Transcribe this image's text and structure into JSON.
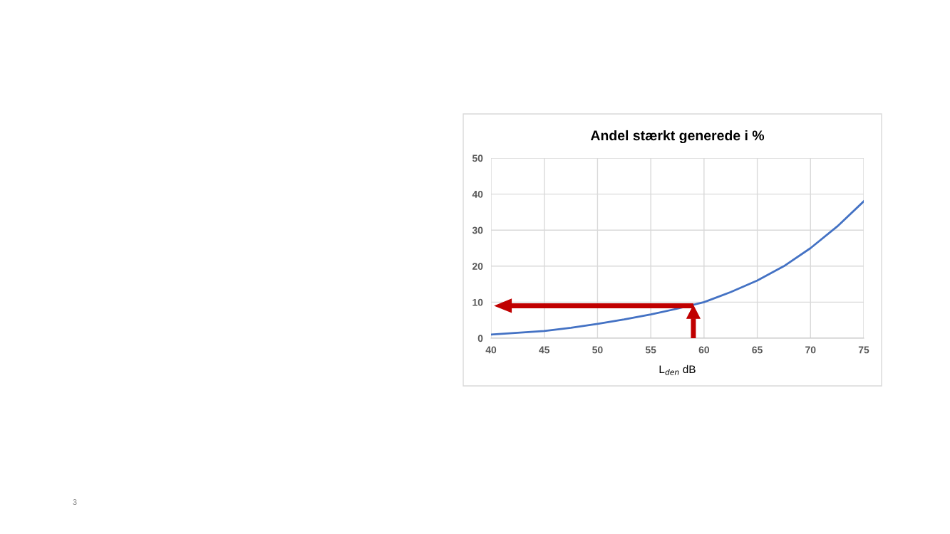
{
  "chart_data": {
    "type": "line",
    "title": "Andel stærkt generede i %",
    "xlabel": "L$_{den}$ dB",
    "x": [
      40,
      42.5,
      45,
      47.5,
      50,
      52.5,
      55,
      57.5,
      60,
      62.5,
      65,
      67.5,
      70,
      72.5,
      75
    ],
    "series": [
      {
        "color": "#4472c4",
        "values": [
          1.0,
          1.5,
          2.0,
          2.9,
          4.0,
          5.2,
          6.6,
          8.2,
          10.0,
          12.8,
          16.0,
          20.0,
          25.0,
          31.0,
          38.0
        ]
      }
    ],
    "xlim": [
      40,
      75
    ],
    "xticks": [
      40,
      45,
      50,
      55,
      60,
      65,
      70,
      75
    ],
    "ylim": [
      0,
      50
    ],
    "yticks": [
      0,
      10,
      20,
      30,
      40,
      50
    ],
    "grid": true,
    "legend": false,
    "marker": "none",
    "line_style": "solid",
    "ref_lines": [
      {
        "axis": "x",
        "value": 59,
        "label": null,
        "color": "#c00000"
      },
      {
        "axis": "y",
        "value": 9,
        "label": null,
        "color": "#c00000"
      }
    ],
    "annotations": [
      "3"
    ]
  }
}
